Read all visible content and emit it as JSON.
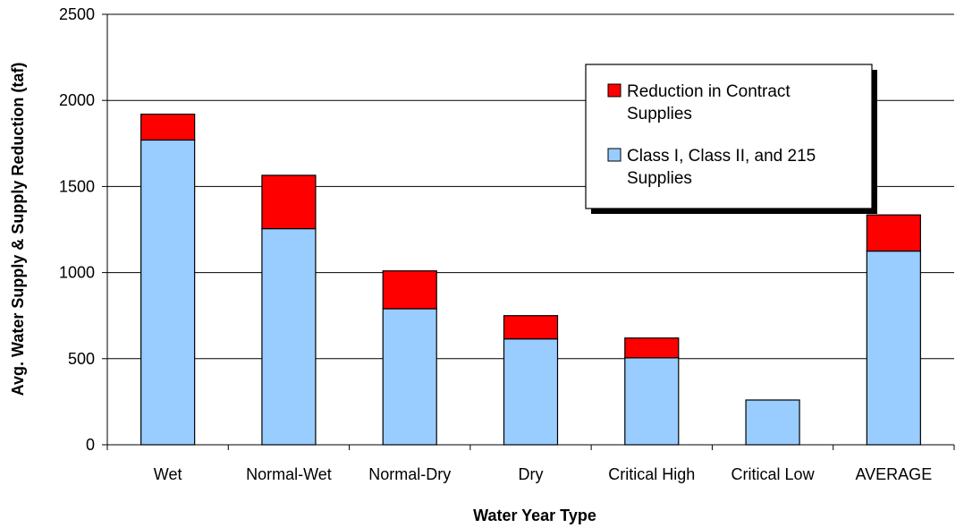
{
  "chart_data": {
    "type": "bar",
    "stacked": true,
    "title": "",
    "xlabel": "Water Year Type",
    "ylabel": "Avg. Water Supply & Supply Reduction (taf)",
    "categories": [
      "Wet",
      "Normal-Wet",
      "Normal-Dry",
      "Dry",
      "Critical High",
      "Critical Low",
      "AVERAGE"
    ],
    "ylim": [
      0,
      2500
    ],
    "yticks": [
      0,
      500,
      1000,
      1500,
      2000,
      2500
    ],
    "grid": true,
    "legend_position": "top-right",
    "series": [
      {
        "name": "Class I, Class II, and 215 Supplies",
        "name_lines": [
          "Class I, Class II, and 215",
          "Supplies"
        ],
        "color": "#99ccff",
        "values": [
          1770,
          1255,
          790,
          615,
          505,
          260,
          1125
        ]
      },
      {
        "name": "Reduction in Contract Supplies",
        "name_lines": [
          "Reduction in Contract",
          "Supplies"
        ],
        "color": "#ff0000",
        "values": [
          150,
          310,
          220,
          135,
          115,
          0,
          210
        ]
      }
    ]
  }
}
